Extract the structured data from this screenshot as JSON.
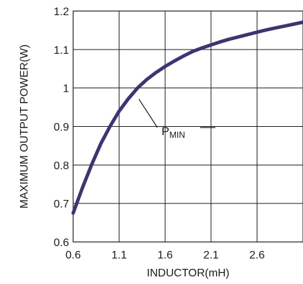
{
  "chart_data": {
    "type": "line",
    "title": "",
    "xlabel": "INDUCTOR(mH)",
    "ylabel": "MAXIMUM OUTPUT POWER(W)",
    "xlim": [
      0.6,
      3.1
    ],
    "ylim": [
      0.6,
      1.2
    ],
    "x_ticks": [
      0.6,
      1.1,
      1.6,
      2.1,
      2.6
    ],
    "x_tick_labels": [
      "0.6",
      "1.1",
      "1.6",
      "2.1",
      "2.6"
    ],
    "x_grid": [
      0.6,
      1.1,
      1.6,
      2.1,
      2.6,
      3.1
    ],
    "y_ticks": [
      0.6,
      0.7,
      0.8,
      0.9,
      1.0,
      1.1,
      1.2
    ],
    "y_tick_labels": [
      "0.6",
      "0.7",
      "0.8",
      "0.9",
      "1",
      "1.1",
      "1.2"
    ],
    "grid": true,
    "line_color": "#3b3670",
    "series": [
      {
        "name": "",
        "x": [
          0.6,
          0.7,
          0.8,
          0.9,
          1.0,
          1.1,
          1.2,
          1.3,
          1.4,
          1.5,
          1.6,
          1.7,
          1.8,
          1.9,
          2.0,
          2.1,
          2.2,
          2.3,
          2.4,
          2.5,
          2.6,
          2.7,
          2.8,
          2.9,
          3.0,
          3.1
        ],
        "y": [
          0.675,
          0.74,
          0.8,
          0.855,
          0.9,
          0.94,
          0.972,
          1.0,
          1.022,
          1.04,
          1.056,
          1.07,
          1.083,
          1.095,
          1.104,
          1.112,
          1.12,
          1.127,
          1.133,
          1.139,
          1.145,
          1.151,
          1.156,
          1.161,
          1.166,
          1.171
        ]
      }
    ],
    "annotation": {
      "label": "P",
      "subscript": "MIN",
      "x": 1.3,
      "y": 1.0
    }
  }
}
